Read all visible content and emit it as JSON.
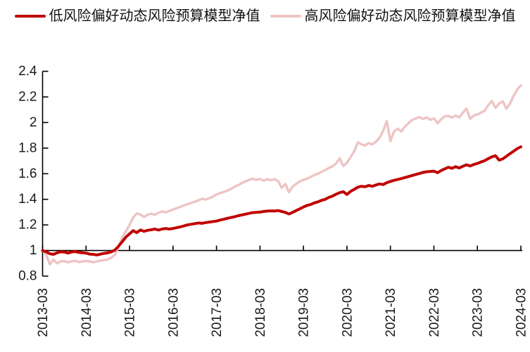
{
  "chart_data": {
    "type": "line",
    "title": "",
    "x_unit": "month",
    "x_tick_labels": [
      "2013-03",
      "2014-03",
      "2015-03",
      "2016-03",
      "2017-03",
      "2018-03",
      "2019-03",
      "2020-03",
      "2021-03",
      "2022-03",
      "2023-03",
      "2024-03"
    ],
    "x_tick_interval_months": 12,
    "y_tick_labels": [
      "0.8",
      "1",
      "1.2",
      "1.4",
      "1.6",
      "1.8",
      "2",
      "2.2",
      "2.4"
    ],
    "ylim": [
      0.8,
      2.4
    ],
    "x_axis_at_y": 1,
    "grid": false,
    "legend_position": "top",
    "axis_color": "#000000",
    "tick_label_color": "#1a1a1a",
    "series": [
      {
        "name": "低风险偏好动态风险预算模型净值",
        "color": "#C00000",
        "line_width": 4,
        "values": [
          1.0,
          0.99,
          0.975,
          0.97,
          0.982,
          0.99,
          0.988,
          0.98,
          0.988,
          0.992,
          0.985,
          0.983,
          0.98,
          0.972,
          0.97,
          0.965,
          0.972,
          0.978,
          0.982,
          0.99,
          1.005,
          1.035,
          1.07,
          1.105,
          1.13,
          1.155,
          1.14,
          1.16,
          1.15,
          1.158,
          1.162,
          1.168,
          1.16,
          1.168,
          1.172,
          1.168,
          1.172,
          1.178,
          1.185,
          1.192,
          1.2,
          1.205,
          1.21,
          1.215,
          1.212,
          1.218,
          1.222,
          1.226,
          1.23,
          1.238,
          1.244,
          1.252,
          1.258,
          1.264,
          1.272,
          1.278,
          1.284,
          1.29,
          1.296,
          1.298,
          1.3,
          1.305,
          1.308,
          1.31,
          1.308,
          1.312,
          1.305,
          1.298,
          1.285,
          1.298,
          1.312,
          1.326,
          1.34,
          1.352,
          1.36,
          1.372,
          1.38,
          1.392,
          1.4,
          1.415,
          1.425,
          1.44,
          1.452,
          1.46,
          1.438,
          1.462,
          1.478,
          1.495,
          1.502,
          1.498,
          1.508,
          1.502,
          1.512,
          1.52,
          1.515,
          1.53,
          1.54,
          1.548,
          1.555,
          1.562,
          1.57,
          1.578,
          1.586,
          1.594,
          1.602,
          1.61,
          1.615,
          1.618,
          1.62,
          1.608,
          1.625,
          1.638,
          1.65,
          1.642,
          1.655,
          1.645,
          1.658,
          1.67,
          1.66,
          1.672,
          1.68,
          1.692,
          1.702,
          1.718,
          1.732,
          1.74,
          1.706,
          1.716,
          1.736,
          1.756,
          1.776,
          1.796,
          1.81
        ]
      },
      {
        "name": "高风险偏好动态风险预算模型净值",
        "color": "#EDC4C4",
        "line_width": 3.4,
        "values": [
          1.0,
          0.968,
          0.892,
          0.928,
          0.9,
          0.915,
          0.918,
          0.908,
          0.915,
          0.92,
          0.91,
          0.915,
          0.918,
          0.915,
          0.908,
          0.915,
          0.92,
          0.925,
          0.93,
          0.945,
          0.968,
          1.03,
          1.105,
          1.15,
          1.2,
          1.258,
          1.29,
          1.28,
          1.262,
          1.28,
          1.288,
          1.278,
          1.295,
          1.305,
          1.298,
          1.31,
          1.32,
          1.33,
          1.34,
          1.352,
          1.362,
          1.372,
          1.38,
          1.392,
          1.405,
          1.398,
          1.408,
          1.42,
          1.438,
          1.448,
          1.458,
          1.468,
          1.48,
          1.498,
          1.51,
          1.528,
          1.54,
          1.552,
          1.56,
          1.552,
          1.56,
          1.545,
          1.558,
          1.548,
          1.558,
          1.542,
          1.49,
          1.52,
          1.455,
          1.5,
          1.52,
          1.54,
          1.552,
          1.562,
          1.575,
          1.59,
          1.6,
          1.615,
          1.628,
          1.645,
          1.658,
          1.68,
          1.72,
          1.66,
          1.685,
          1.73,
          1.775,
          1.845,
          1.83,
          1.82,
          1.84,
          1.828,
          1.85,
          1.88,
          1.935,
          2.01,
          1.855,
          1.93,
          1.952,
          1.93,
          1.968,
          1.995,
          2.02,
          2.032,
          2.042,
          2.028,
          2.04,
          2.02,
          2.032,
          1.995,
          2.025,
          2.048,
          2.052,
          2.038,
          2.055,
          2.04,
          2.078,
          2.108,
          2.028,
          2.055,
          2.062,
          2.078,
          2.092,
          2.135,
          2.168,
          2.115,
          2.148,
          2.165,
          2.108,
          2.148,
          2.208,
          2.258,
          2.29
        ]
      }
    ]
  }
}
